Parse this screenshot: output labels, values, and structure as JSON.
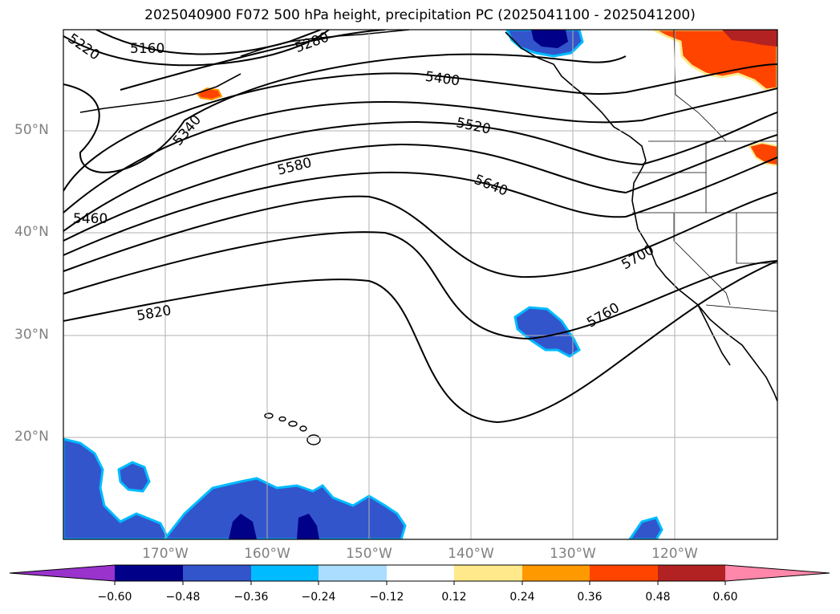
{
  "title": "2025040900 F072 500 hPa height, precipitation PC (2025041100 - 2025041200)",
  "map": {
    "lat_labels": [
      "50°N",
      "40°N",
      "30°N",
      "20°N"
    ],
    "lon_labels": [
      "170°W",
      "160°W",
      "150°W",
      "140°W",
      "130°W",
      "120°W"
    ],
    "contour_labels": [
      "5160",
      "5220",
      "5280",
      "5340",
      "5400",
      "5460",
      "5520",
      "5580",
      "5640",
      "5700",
      "5760",
      "5820"
    ],
    "contour_color": "#000000"
  },
  "colorbar": {
    "tick_labels": [
      "−0.60",
      "−0.48",
      "−0.36",
      "−0.24",
      "−0.12",
      "0.12",
      "0.24",
      "0.36",
      "0.48",
      "0.60"
    ],
    "colors": [
      "#9933cc",
      "#000088",
      "#3355cc",
      "#00bbff",
      "#aaddff",
      "#ffffff",
      "#ffe98a",
      "#ff9900",
      "#ff4400",
      "#b22222",
      "#ff88aa"
    ]
  }
}
